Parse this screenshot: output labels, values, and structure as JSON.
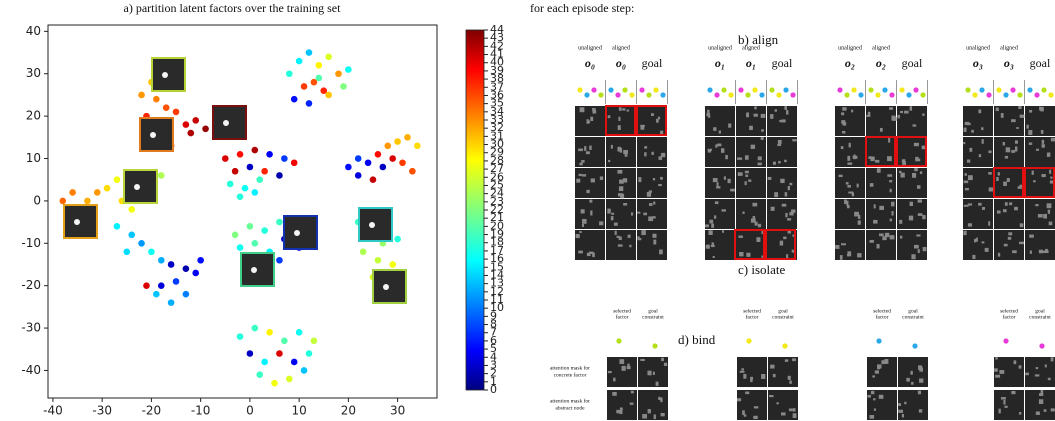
{
  "chart_data": {
    "type": "scatter",
    "title": "a) partition latent factors over the training set",
    "xlim": [
      -41,
      38
    ],
    "ylim": [
      -46.5,
      41.5
    ],
    "xticks": [
      -40,
      -30,
      -20,
      -10,
      0,
      10,
      20,
      30
    ],
    "yticks": [
      -40,
      -30,
      -20,
      -10,
      0,
      10,
      20,
      30,
      40
    ],
    "colormap": "jet",
    "clim": [
      0,
      44
    ],
    "cticks": [
      0,
      1,
      2,
      3,
      4,
      5,
      6,
      7,
      8,
      9,
      10,
      11,
      12,
      13,
      14,
      15,
      16,
      17,
      18,
      19,
      20,
      21,
      22,
      23,
      24,
      25,
      26,
      27,
      28,
      29,
      30,
      31,
      32,
      33,
      34,
      35,
      36,
      37,
      38,
      39,
      40,
      41,
      42,
      43,
      44
    ],
    "x": [
      8,
      10,
      12,
      14,
      16,
      18,
      20,
      11,
      13,
      15,
      9,
      12,
      16,
      19,
      14,
      -20,
      -18,
      -16,
      -14,
      -22,
      -19,
      -17,
      -15,
      -21,
      -18,
      -13,
      -11,
      -9,
      -7,
      -12,
      -16,
      -20,
      -38,
      -36,
      -33,
      -31,
      -29,
      -27,
      -25,
      -23,
      -22,
      -20,
      -26,
      -32,
      -24,
      -18,
      -5,
      -2,
      1,
      4,
      7,
      9,
      -3,
      0,
      3,
      6,
      -4,
      -1,
      2,
      -2,
      1,
      20,
      22,
      24,
      26,
      28,
      30,
      32,
      34,
      27,
      29,
      31,
      25,
      33,
      22,
      -27,
      -24,
      -22,
      -20,
      -18,
      -16,
      -13,
      -11,
      -15,
      -18,
      -21,
      -19,
      -16,
      -13,
      -10,
      -25,
      -3,
      0,
      3,
      6,
      -2,
      1,
      4,
      7,
      9,
      10,
      -1,
      3,
      6,
      0,
      22,
      25,
      28,
      24,
      27,
      30,
      23,
      26,
      29,
      25,
      28,
      31,
      -2,
      1,
      4,
      7,
      10,
      13,
      0,
      3,
      6,
      9,
      12,
      2,
      5,
      8,
      11
    ],
    "values": [
      30,
      33,
      35,
      32,
      34,
      30,
      31,
      27,
      28,
      26,
      24,
      23,
      25,
      27,
      29,
      28,
      30,
      27,
      29,
      25,
      24,
      22,
      21,
      20,
      18,
      18,
      19,
      17,
      18,
      16,
      13,
      15,
      0,
      2,
      0,
      2,
      3,
      5,
      3,
      6,
      2,
      4,
      0,
      -3,
      -2,
      6,
      10,
      11,
      12,
      11,
      10,
      9,
      7,
      8,
      7,
      6,
      4,
      3,
      5,
      1,
      2,
      8,
      6,
      9,
      11,
      13,
      14,
      15,
      13,
      8,
      10,
      9,
      5,
      7,
      10,
      -6,
      -8,
      -10,
      -12,
      -14,
      -15,
      -16,
      -17,
      -19,
      -20,
      -20,
      -22,
      -24,
      -22,
      -14,
      -12,
      -8,
      -6,
      -7,
      -5,
      -11,
      -10,
      -12,
      -9,
      -8,
      -11,
      -15,
      -16,
      -14,
      -18,
      -5,
      -3,
      -4,
      -8,
      -10,
      -9,
      -12,
      -14,
      -15,
      -18,
      -20,
      -18,
      -32,
      -30,
      -31,
      -33,
      -31,
      -33,
      -36,
      -38,
      -36,
      -38,
      -36,
      -41,
      -43,
      -42,
      -40
    ],
    "c": [
      18,
      16,
      14,
      28,
      26,
      32,
      17,
      36,
      35,
      37,
      6,
      7,
      30,
      22,
      20,
      30,
      29,
      31,
      30,
      32,
      33,
      35,
      36,
      37,
      36,
      40,
      41,
      43,
      42,
      42,
      38,
      39,
      34,
      33,
      31,
      32,
      29,
      27,
      28,
      27,
      26,
      25,
      29,
      33,
      27,
      24,
      40,
      38,
      42,
      5,
      8,
      39,
      41,
      3,
      37,
      2,
      18,
      17,
      19,
      18,
      16,
      6,
      4,
      5,
      38,
      32,
      30,
      31,
      29,
      3,
      40,
      36,
      41,
      35,
      8,
      16,
      14,
      12,
      17,
      13,
      3,
      2,
      5,
      8,
      4,
      40,
      14,
      13,
      11,
      6,
      15,
      22,
      21,
      18,
      19,
      17,
      20,
      16,
      3,
      5,
      4,
      15,
      14,
      8,
      12,
      19,
      17,
      21,
      16,
      23,
      18,
      24,
      25,
      27,
      26,
      29,
      22,
      18,
      19,
      28,
      20,
      17,
      25,
      3,
      16,
      40,
      5,
      18,
      19,
      27,
      26,
      14
    ]
  },
  "right_panel": {
    "header": "for each episode step:",
    "align_title": "b) align",
    "isolate_title": "c) isolate",
    "bind_title": "d) bind",
    "steps": [
      {
        "labels": [
          "unaligned",
          "aligned"
        ],
        "obs": [
          "o₀",
          "o₀"
        ],
        "goal": "goal"
      },
      {
        "labels": [
          "unaligned",
          "aligned"
        ],
        "obs": [
          "o₁",
          "o₁"
        ],
        "goal": "goal"
      },
      {
        "labels": [
          "unaligned",
          "aligned"
        ],
        "obs": [
          "o₂",
          "o₂"
        ],
        "goal": "goal"
      },
      {
        "labels": [
          "unaligned",
          "aligned"
        ],
        "obs": [
          "o₃",
          "o₃"
        ],
        "goal": "goal"
      }
    ],
    "bind_columns": [
      {
        "selected": [
          "selected",
          "factor"
        ],
        "constraint": [
          "goal",
          "constraint"
        ]
      },
      {
        "selected": [
          "selected",
          "factor"
        ],
        "constraint": [
          "goal",
          "constraint"
        ]
      },
      {
        "selected": [
          "selected",
          "factor"
        ],
        "constraint": [
          "goal",
          "constraint"
        ]
      },
      {
        "selected": [
          "selected",
          "factor"
        ],
        "constraint": [
          "goal",
          "constraint"
        ]
      }
    ],
    "row_labels": [
      [
        "attention mask for",
        "concrete factor"
      ],
      [
        "attention mask for",
        "abstract node"
      ]
    ]
  }
}
